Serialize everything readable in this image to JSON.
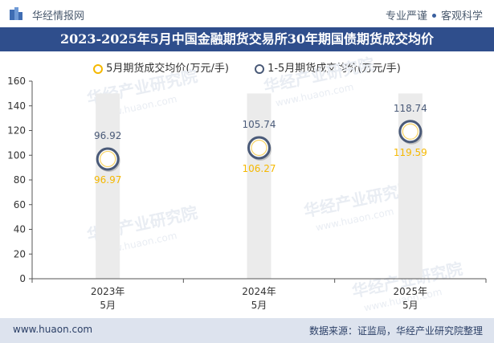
{
  "header": {
    "brand": "华经情报网",
    "slogan_left": "专业严谨",
    "slogan_right": "客观科学"
  },
  "watermark": {
    "brand_cn": "华经产业研究院",
    "brand_url": "www.huaon.com"
  },
  "colors": {
    "title_bg": "#2f4e8c",
    "series1": "#f5b800",
    "series2": "#4a5a78",
    "bar_bg": "#ebebeb",
    "footer_bg": "#dde3ee"
  },
  "chart_data": {
    "type": "scatter",
    "title": "2023-2025年5月中国金融期货交易所30年期国债期货成交均价",
    "categories": [
      "2023年\n5月",
      "2024年\n5月",
      "2025年\n5月"
    ],
    "series": [
      {
        "name": "5月期货成交均价(万元/手)",
        "values": [
          96.97,
          106.27,
          119.59
        ]
      },
      {
        "name": "1-5月期货成交均价(万元/手)",
        "values": [
          96.92,
          105.74,
          118.74
        ]
      }
    ],
    "ylim": [
      0,
      160
    ],
    "yticks": [
      0,
      20,
      40,
      60,
      80,
      100,
      120,
      140,
      160
    ],
    "xlabel": "",
    "ylabel": "",
    "legend": "top-center"
  },
  "footer": {
    "url": "www.huaon.com",
    "source": "数据来源：证监局，华经产业研究院整理"
  }
}
